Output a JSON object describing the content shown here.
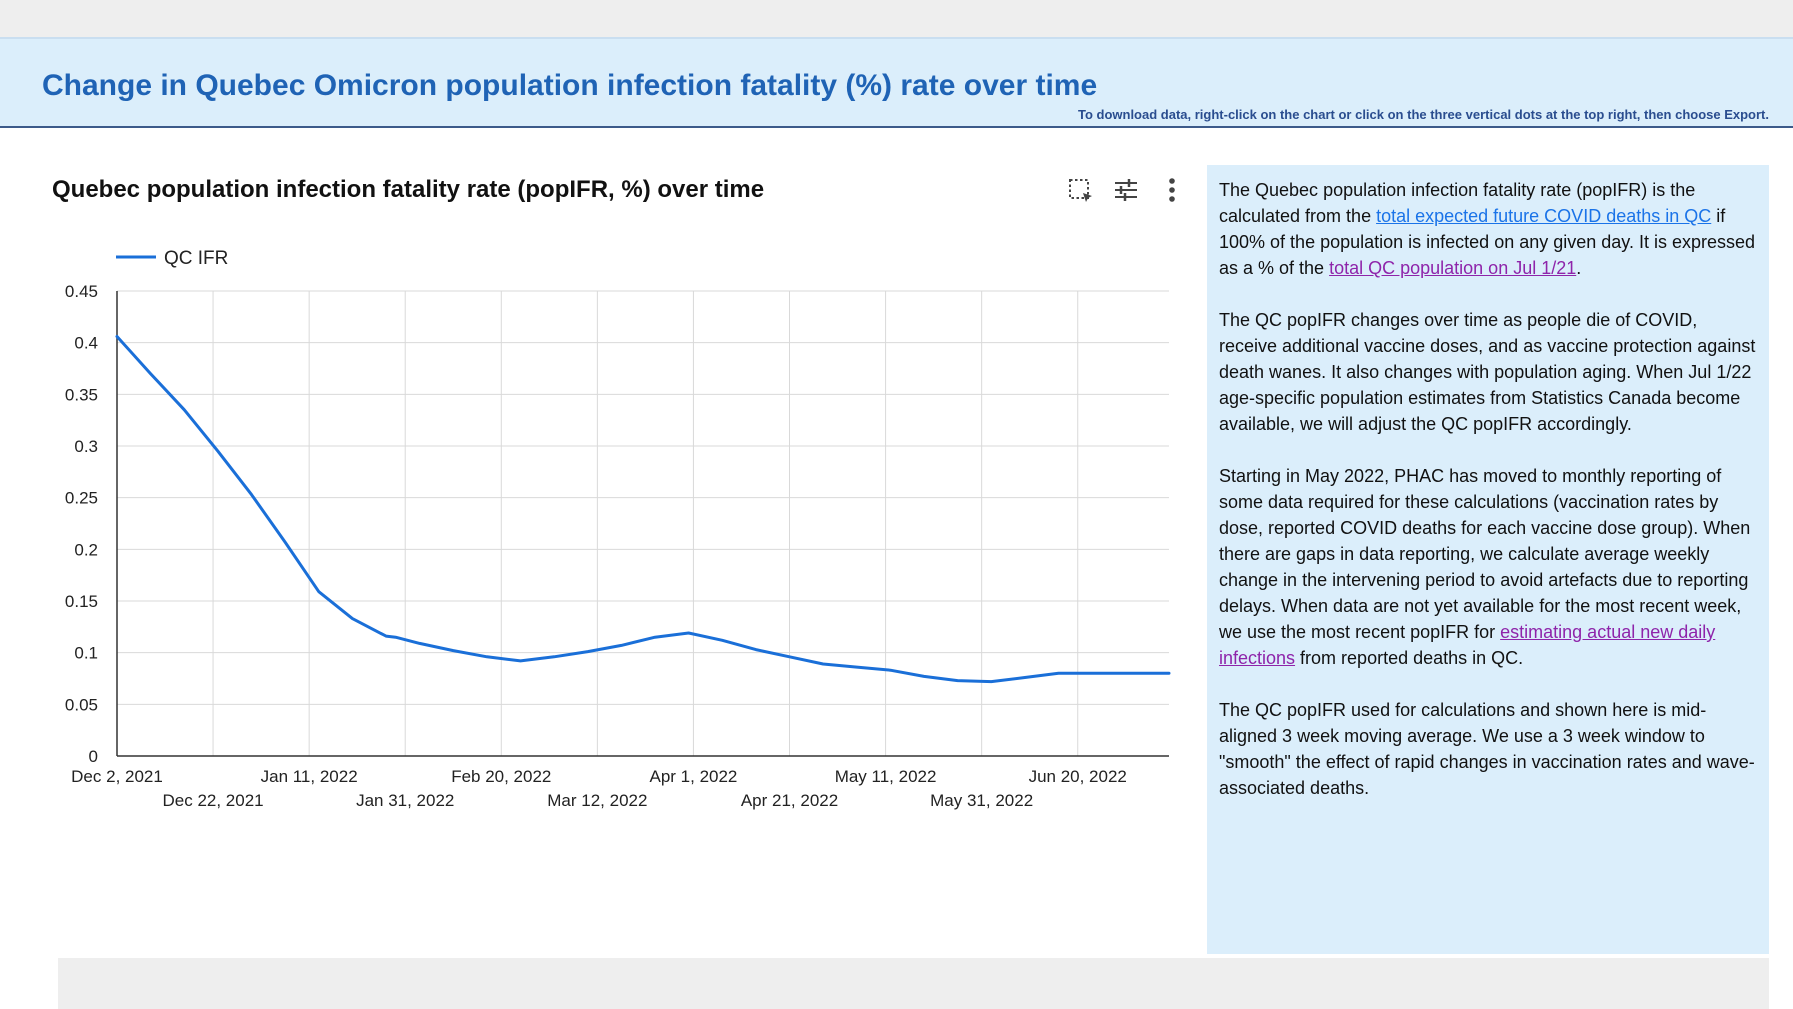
{
  "banner": {
    "title": "Change in Quebec Omicron population infection fatality (%) rate over time",
    "note": "To download data, right-click on the chart or click on the three vertical dots at the top right, then choose Export."
  },
  "chart_toolbar": {
    "icons": [
      "select-region-icon",
      "filter-sliders-icon",
      "more-vertical-icon"
    ]
  },
  "chart_data": {
    "type": "line",
    "title": "Quebec population infection fatality rate (popIFR, %) over time",
    "xlabel": "",
    "ylabel": "",
    "legend": {
      "position": "top-left",
      "entries": [
        "QC IFR"
      ]
    },
    "grid": true,
    "xlim": [
      "2021-12-02",
      "2022-07-09"
    ],
    "ylim": [
      0,
      0.45
    ],
    "yticks": [
      {
        "value": 0,
        "label": "0"
      },
      {
        "value": 0.05,
        "label": "0.05"
      },
      {
        "value": 0.1,
        "label": "0.1"
      },
      {
        "value": 0.15,
        "label": "0.15"
      },
      {
        "value": 0.2,
        "label": "0.2"
      },
      {
        "value": 0.25,
        "label": "0.25"
      },
      {
        "value": 0.3,
        "label": "0.3"
      },
      {
        "value": 0.35,
        "label": "0.35"
      },
      {
        "value": 0.4,
        "label": "0.4"
      },
      {
        "value": 0.45,
        "label": "0.45"
      }
    ],
    "xticks": [
      {
        "date": "2021-12-02",
        "label": "Dec 2, 2021",
        "row": 1
      },
      {
        "date": "2021-12-22",
        "label": "Dec 22, 2021",
        "row": 2
      },
      {
        "date": "2022-01-11",
        "label": "Jan 11, 2022",
        "row": 1
      },
      {
        "date": "2022-01-31",
        "label": "Jan 31, 2022",
        "row": 2
      },
      {
        "date": "2022-02-20",
        "label": "Feb 20, 2022",
        "row": 1
      },
      {
        "date": "2022-03-12",
        "label": "Mar 12, 2022",
        "row": 2
      },
      {
        "date": "2022-04-01",
        "label": "Apr 1, 2022",
        "row": 1
      },
      {
        "date": "2022-04-21",
        "label": "Apr 21, 2022",
        "row": 2
      },
      {
        "date": "2022-05-11",
        "label": "May 11, 2022",
        "row": 1
      },
      {
        "date": "2022-05-31",
        "label": "May 31, 2022",
        "row": 2
      },
      {
        "date": "2022-06-20",
        "label": "Jun 20, 2022",
        "row": 1
      }
    ],
    "series": [
      {
        "name": "QC IFR",
        "color": "#1a6fd8",
        "x": [
          "2021-12-02",
          "2021-12-09",
          "2021-12-16",
          "2021-12-23",
          "2021-12-30",
          "2022-01-06",
          "2022-01-13",
          "2022-01-20",
          "2022-01-27",
          "2022-01-29",
          "2022-02-03",
          "2022-02-10",
          "2022-02-17",
          "2022-02-24",
          "2022-03-03",
          "2022-03-10",
          "2022-03-17",
          "2022-03-24",
          "2022-03-31",
          "2022-04-07",
          "2022-04-14",
          "2022-04-21",
          "2022-04-28",
          "2022-05-05",
          "2022-05-12",
          "2022-05-19",
          "2022-05-26",
          "2022-06-02",
          "2022-06-09",
          "2022-06-16",
          "2022-06-23",
          "2022-06-30",
          "2022-07-09"
        ],
        "values": [
          0.406,
          0.37,
          0.335,
          0.295,
          0.253,
          0.207,
          0.159,
          0.133,
          0.116,
          0.115,
          0.109,
          0.102,
          0.096,
          0.092,
          0.096,
          0.101,
          0.107,
          0.115,
          0.119,
          0.112,
          0.103,
          0.096,
          0.089,
          0.086,
          0.083,
          0.077,
          0.073,
          0.072,
          0.076,
          0.08,
          0.08,
          0.08,
          0.08
        ]
      }
    ]
  },
  "side_panel": {
    "p1_a": "The Quebec population infection fatality rate (popIFR) is the calculated from the ",
    "p1_link1": "total expected future COVID deaths in QC",
    "p1_b": " if 100% of the population is infected on any given day. It is expressed as a % of the ",
    "p1_link2": "total QC population on Jul 1/21",
    "p1_c": ".",
    "p2": "The QC popIFR changes over time as people die of COVID, receive additional vaccine doses, and as vaccine protection against death wanes. It also changes with population aging. When Jul 1/22 age-specific population estimates from Statistics Canada become available, we will adjust the QC popIFR accordingly.",
    "p3_a": "Starting in May 2022, PHAC has moved to monthly reporting of some data required for these calculations (vaccination rates by dose, reported COVID deaths for each vaccine dose group). When there are gaps in data reporting, we calculate average weekly change in the intervening period to avoid artefacts due to reporting delays. When data are not yet available for the most recent week, we use the most recent popIFR for ",
    "p3_link": "estimating actual new daily infections",
    "p3_b": " from reported deaths in QC.",
    "p4": "The QC popIFR used for calculations and shown here is mid-aligned 3 week moving average. We use a 3 week window to \"smooth\" the effect of rapid changes in vaccination rates and wave-associated deaths."
  }
}
